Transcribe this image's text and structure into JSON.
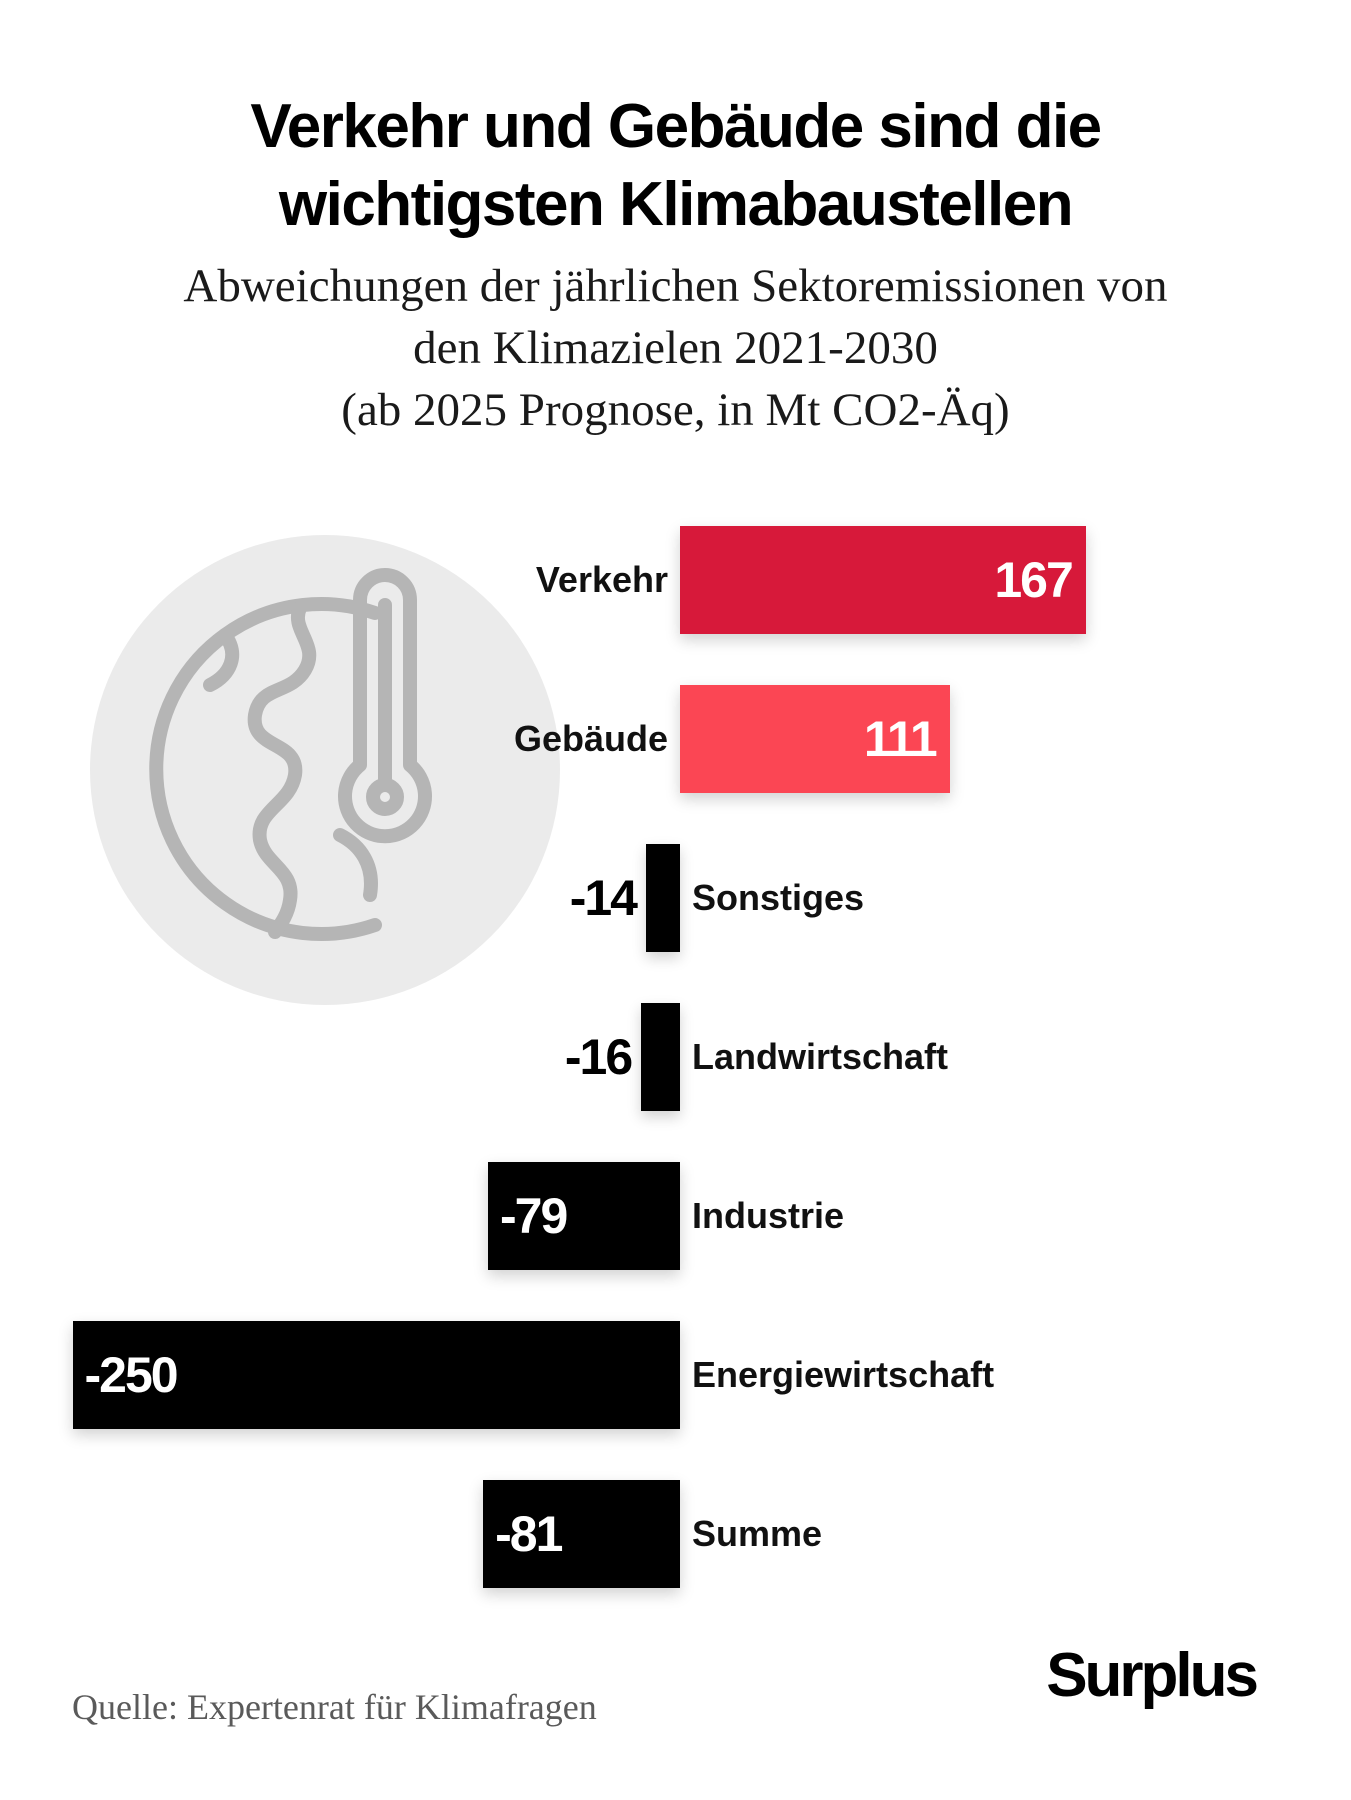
{
  "header": {
    "title_lines": [
      "Verkehr und Gebäude sind die",
      "wichtigsten Klimabaustellen"
    ],
    "subtitle_lines": [
      "Abweichungen der jährlichen Sektoremissionen von",
      "den Klimazielen 2021-2030",
      "(ab 2025 Prognose, in Mt CO2-Äq)"
    ]
  },
  "chart_data": {
    "type": "bar",
    "orientation": "horizontal",
    "categories": [
      "Verkehr",
      "Gebäude",
      "Sonstiges",
      "Landwirtschaft",
      "Industrie",
      "Energiewirtschaft",
      "Summe"
    ],
    "values": [
      167,
      111,
      -14,
      -16,
      -79,
      -250,
      -81
    ],
    "value_labels": [
      "167",
      "111",
      "-14",
      "-16",
      "-79",
      "-250",
      "-81"
    ],
    "bar_colors": [
      "#d7193a",
      "#fb4654",
      "#000000",
      "#000000",
      "#000000",
      "#000000",
      "#000000"
    ],
    "xlim": [
      -250,
      167
    ],
    "grid": false,
    "title": "Verkehr und Gebäude sind die wichtigsten Klimabaustellen"
  },
  "illustration": {
    "icon": "globe-thermometer-icon",
    "circle_color": "#ebebeb",
    "icon_color": "#b5b5b5"
  },
  "footer": {
    "source": "Quelle: Expertenrat für Klimafragen",
    "brand": "Surplus"
  }
}
